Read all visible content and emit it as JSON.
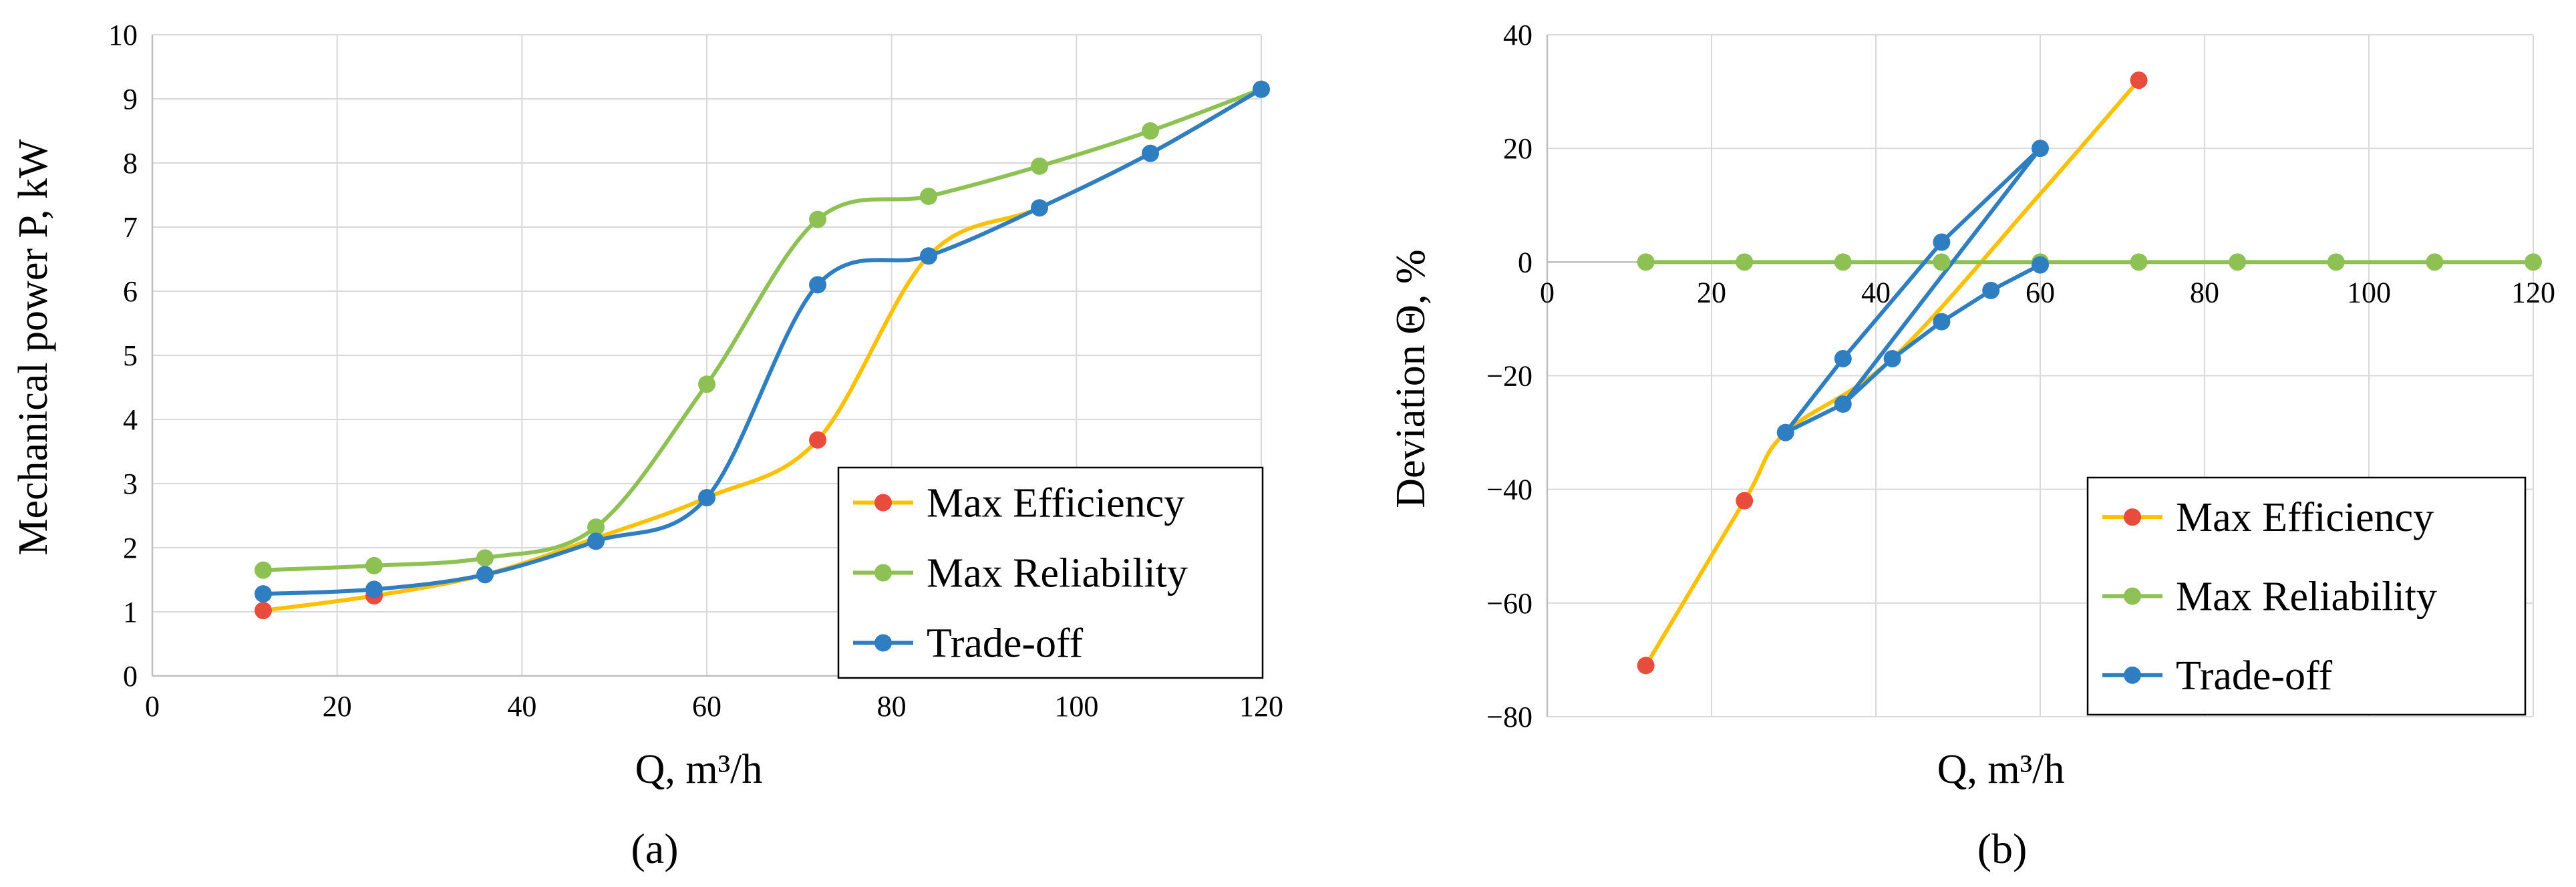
{
  "chart_data": [
    {
      "type": "line",
      "panel_label": "(a)",
      "xlabel": "Q, m³/h",
      "ylabel": "Mechanical power P, kW",
      "xlim": [
        0,
        120
      ],
      "ylim": [
        0,
        10
      ],
      "xticks": [
        0,
        20,
        40,
        60,
        80,
        100,
        120
      ],
      "yticks": [
        0,
        1,
        2,
        3,
        4,
        5,
        6,
        7,
        8,
        9,
        10
      ],
      "grid": true,
      "legend_position": "bottom-right",
      "series": [
        {
          "name": "Max Efficiency",
          "line_color": "#FFC000",
          "marker_color": "#E84C3D",
          "marker_indices": [
            0,
            1,
            5
          ],
          "points": [
            [
              12,
              1.02
            ],
            [
              24,
              1.25
            ],
            [
              36,
              1.58
            ],
            [
              48,
              2.15
            ],
            [
              60,
              2.78
            ],
            [
              72,
              3.68
            ],
            [
              84,
              6.55
            ],
            [
              96,
              7.3
            ],
            [
              108,
              8.15
            ],
            [
              120,
              9.15
            ]
          ]
        },
        {
          "name": "Max Reliability",
          "line_color": "#8DC153",
          "marker_color": "#8DC153",
          "points": [
            [
              12,
              1.65
            ],
            [
              24,
              1.72
            ],
            [
              36,
              1.84
            ],
            [
              48,
              2.32
            ],
            [
              60,
              4.55
            ],
            [
              72,
              7.12
            ],
            [
              84,
              7.48
            ],
            [
              96,
              7.95
            ],
            [
              108,
              8.5
            ],
            [
              120,
              9.15
            ]
          ]
        },
        {
          "name": "Trade-off",
          "line_color": "#2E7EC1",
          "marker_color": "#2E7EC1",
          "points": [
            [
              12,
              1.28
            ],
            [
              24,
              1.35
            ],
            [
              36,
              1.58
            ],
            [
              48,
              2.1
            ],
            [
              60,
              2.78
            ],
            [
              72,
              6.1
            ],
            [
              84,
              6.55
            ],
            [
              96,
              7.3
            ],
            [
              108,
              8.15
            ],
            [
              120,
              9.15
            ]
          ]
        }
      ]
    },
    {
      "type": "line",
      "panel_label": "(b)",
      "xlabel": "Q, m³/h",
      "ylabel": "Deviation Θ, %",
      "xlim": [
        0,
        120
      ],
      "ylim": [
        -80,
        40
      ],
      "xticks": [
        0,
        20,
        40,
        60,
        80,
        100,
        120
      ],
      "yticks": [
        -80,
        -60,
        -40,
        -20,
        0,
        20,
        40
      ],
      "grid": true,
      "legend_position": "bottom-right",
      "series": [
        {
          "name": "Max Efficiency",
          "line_color": "#FFC000",
          "marker_color": "#E84C3D",
          "marker_indices": [
            0,
            1,
            5
          ],
          "points": [
            [
              12,
              -71
            ],
            [
              24,
              -42
            ],
            [
              29,
              -30
            ],
            [
              42,
              -17
            ],
            [
              60,
              12
            ],
            [
              72,
              32
            ]
          ]
        },
        {
          "name": "Max Reliability",
          "line_color": "#8DC153",
          "marker_color": "#8DC153",
          "points": [
            [
              12,
              0
            ],
            [
              24,
              0
            ],
            [
              36,
              0
            ],
            [
              48,
              0
            ],
            [
              60,
              0
            ],
            [
              72,
              0
            ],
            [
              84,
              0
            ],
            [
              96,
              0
            ],
            [
              108,
              0
            ],
            [
              120,
              0
            ]
          ]
        },
        {
          "name": "Trade-off",
          "line_color": "#2E7EC1",
          "marker_color": "#2E7EC1",
          "points": [
            [
              29,
              -30
            ],
            [
              36,
              -17
            ],
            [
              48,
              3.5
            ],
            [
              60,
              20
            ],
            [
              36,
              -25
            ],
            [
              42,
              -17
            ],
            [
              48,
              -10.5
            ],
            [
              54,
              -5
            ],
            [
              60,
              -0.5
            ]
          ],
          "segments": [
            [
              0,
              1
            ],
            [
              1,
              2
            ],
            [
              2,
              3
            ],
            [
              3,
              4
            ],
            [
              4,
              5
            ],
            [
              5,
              6
            ],
            [
              6,
              7
            ],
            [
              7,
              8
            ],
            [
              0,
              4
            ]
          ]
        }
      ]
    }
  ]
}
